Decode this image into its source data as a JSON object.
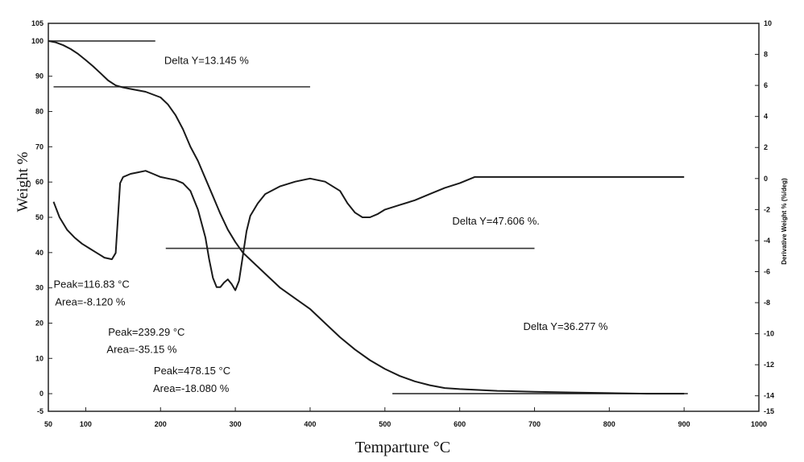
{
  "chart_data": {
    "type": "line",
    "xlabel": "Temparture °C",
    "ylabel": "Weight %",
    "y2label": "Derivative Weight % (%/deg)",
    "xlim": [
      50,
      1000
    ],
    "ylim": [
      -5,
      105
    ],
    "y2lim": [
      -15,
      10
    ],
    "x_ticks": [
      {
        "value": 50,
        "label": "50"
      },
      {
        "value": 100,
        "label": "100"
      },
      {
        "value": 200,
        "label": "200"
      },
      {
        "value": 300,
        "label": "300"
      },
      {
        "value": 400,
        "label": "400"
      },
      {
        "value": 500,
        "label": "500"
      },
      {
        "value": 600,
        "label": "600"
      },
      {
        "value": 700,
        "label": "700"
      },
      {
        "value": 800,
        "label": "800"
      },
      {
        "value": 900,
        "label": "900"
      },
      {
        "value": 1000,
        "label": "1000"
      }
    ],
    "y_ticks": [
      {
        "value": 105,
        "label": "105"
      },
      {
        "value": 100,
        "label": "100"
      },
      {
        "value": 90,
        "label": "90"
      },
      {
        "value": 80,
        "label": "80"
      },
      {
        "value": 70,
        "label": "70"
      },
      {
        "value": 60,
        "label": "60"
      },
      {
        "value": 50,
        "label": "50"
      },
      {
        "value": 40,
        "label": "40"
      },
      {
        "value": 30,
        "label": "30"
      },
      {
        "value": 20,
        "label": "20"
      },
      {
        "value": 10,
        "label": "10"
      },
      {
        "value": 0,
        "label": "0"
      },
      {
        "value": -5,
        "label": "-5"
      }
    ],
    "y2_ticks": [
      {
        "value": 10,
        "label": "10"
      },
      {
        "value": 8,
        "label": "8"
      },
      {
        "value": 6,
        "label": "6"
      },
      {
        "value": 4,
        "label": "4"
      },
      {
        "value": 2,
        "label": "2"
      },
      {
        "value": 0,
        "label": "0"
      },
      {
        "value": -2,
        "label": "-2"
      },
      {
        "value": -4,
        "label": "-4"
      },
      {
        "value": -6,
        "label": "-6"
      },
      {
        "value": -8,
        "label": "-8"
      },
      {
        "value": -10,
        "label": "-10"
      },
      {
        "value": -12,
        "label": "-12"
      },
      {
        "value": -14,
        "label": "-14"
      },
      {
        "value": -15,
        "label": "-15"
      }
    ],
    "series": [
      {
        "axis": "left",
        "x": [
          50,
          60,
          70,
          80,
          90,
          100,
          110,
          120,
          130,
          140,
          150,
          160,
          180,
          200,
          210,
          220,
          230,
          240,
          250,
          260,
          270,
          280,
          290,
          300,
          310,
          320,
          340,
          360,
          380,
          400,
          420,
          440,
          460,
          480,
          500,
          520,
          540,
          560,
          580,
          600,
          650,
          700,
          750,
          800,
          850,
          880,
          900
        ],
        "values": [
          100,
          99.6,
          98.8,
          97.7,
          96.3,
          94.6,
          92.8,
          90.8,
          88.8,
          87.4,
          86.8,
          86.4,
          85.6,
          84,
          82,
          79,
          75,
          70,
          66,
          61,
          56,
          51,
          46.5,
          43,
          40,
          38,
          34,
          30,
          27,
          24,
          20,
          16,
          12.5,
          9.5,
          7,
          5,
          3.5,
          2.4,
          1.6,
          1.3,
          0.8,
          0.55,
          0.35,
          0.15,
          0,
          0,
          0
        ]
      },
      {
        "axis": "right",
        "x": [
          57,
          65,
          75,
          85,
          95,
          105,
          115,
          125,
          135,
          140,
          143,
          146,
          150,
          160,
          170,
          180,
          190,
          200,
          210,
          220,
          230,
          240,
          250,
          260,
          265,
          270,
          275,
          280,
          285,
          290,
          295,
          300,
          305,
          310,
          315,
          320,
          330,
          340,
          360,
          380,
          400,
          420,
          440,
          450,
          460,
          470,
          480,
          490,
          500,
          520,
          540,
          560,
          580,
          600,
          620,
          650,
          700,
          750,
          800,
          850,
          900
        ],
        "values": [
          -1.5,
          -2.5,
          -3.3,
          -3.8,
          -4.2,
          -4.5,
          -4.8,
          -5.1,
          -5.2,
          -4.8,
          -2.6,
          -0.3,
          0.1,
          0.3,
          0.4,
          0.5,
          0.3,
          0.1,
          0,
          -0.1,
          -0.3,
          -0.8,
          -2,
          -3.8,
          -5.2,
          -6.4,
          -7,
          -7,
          -6.7,
          -6.5,
          -6.8,
          -7.2,
          -6.6,
          -5,
          -3.4,
          -2.4,
          -1.6,
          -1,
          -0.5,
          -0.2,
          0,
          -0.2,
          -0.8,
          -1.6,
          -2.2,
          -2.5,
          -2.5,
          -2.3,
          -2,
          -1.7,
          -1.4,
          -1,
          -0.6,
          -0.3,
          0.1,
          0.1,
          0.1,
          0.1,
          0.1,
          0.1,
          0.1
        ]
      }
    ],
    "annotations": [
      {
        "text": "Delta Y=13.145 %",
        "x": 205,
        "y": 93.5
      },
      {
        "text": "Delta Y=47.606 %.",
        "x": 590,
        "y": 48
      },
      {
        "text": "Delta Y=36.277 %",
        "x": 685,
        "y": 18
      },
      {
        "text": "Peak=116.83 °C",
        "x": 57,
        "y": 30
      },
      {
        "text": "Area=-8.120 %",
        "x": 59,
        "y": 25
      },
      {
        "text": "Peak=239.29 °C",
        "x": 130,
        "y": 16.5
      },
      {
        "text": "Area=-35.15 %",
        "x": 128,
        "y": 11.5
      },
      {
        "text": "Peak=478.15 °C",
        "x": 191,
        "y": 5.5
      },
      {
        "text": "Area=-18.080 %",
        "x": 190,
        "y": 0.5
      }
    ],
    "baselines": [
      {
        "x1": 50,
        "x2": 193,
        "y": 100
      },
      {
        "x1": 57,
        "x2": 400,
        "y": 87
      },
      {
        "x1": 207,
        "x2": 700,
        "y": 41.2
      },
      {
        "x1": 510,
        "x2": 905,
        "y": 0
      }
    ]
  }
}
